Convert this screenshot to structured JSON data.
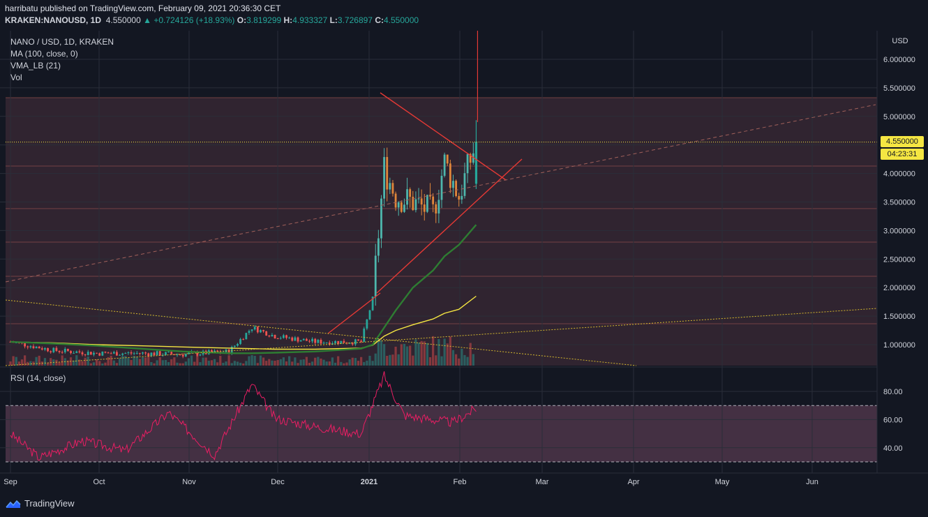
{
  "header": {
    "publisher_line": "harribatu published on TradingView.com, February 09, 2021 20:36:30 CET",
    "symbol": "KRAKEN:NANOUSD, 1D",
    "price": "4.550000",
    "change_arrow": "▲",
    "change": "+0.724126 (+18.93%)",
    "o_label": "O:",
    "o": "3.819299",
    "h_label": "H:",
    "h": "4.933327",
    "l_label": "L:",
    "l": "3.726897",
    "c_label": "C:",
    "c": "4.550000"
  },
  "legend": {
    "title": "NANO / USD, 1D, KRAKEN",
    "ma": "MA (100, close, 0)",
    "vma": "VMA_LB (21)",
    "vol": "Vol",
    "rsi": "RSI (14, close)"
  },
  "price_axis": {
    "currency": "USD",
    "ticks": [
      "6.000000",
      "5.500000",
      "5.000000",
      "4.000000",
      "3.500000",
      "3.000000",
      "2.500000",
      "2.000000",
      "1.500000",
      "1.000000"
    ],
    "last_price_label": "4.550000",
    "countdown_label": "04:23:31"
  },
  "rsi_axis": {
    "ticks": [
      "80.00",
      "60.00",
      "40.00"
    ]
  },
  "time_axis": {
    "labels": [
      "Sep",
      "Oct",
      "Nov",
      "Dec",
      "2021",
      "Feb",
      "Mar",
      "Apr",
      "May",
      "Jun"
    ]
  },
  "footer": {
    "brand": "TradingView",
    "icon": "tradingview-logo-icon"
  },
  "colors": {
    "background": "#131722",
    "up": "#26a69a",
    "down": "#ef5350",
    "ma": "#f5e642",
    "vma": "#2e7d32",
    "trend": "#e53935",
    "rsi": "#e91e63",
    "rsi_band": "#7e57c2",
    "last_price_tag": "#f5e642"
  },
  "chart_data": [
    {
      "type": "line",
      "title": "NANO / USD, 1D, KRAKEN",
      "xlabel": "",
      "ylabel": "USD",
      "ylim": [
        0.6,
        6.4
      ],
      "x": [
        "2020-08-31",
        "2020-09-15",
        "2020-09-30",
        "2020-10-15",
        "2020-10-30",
        "2020-11-15",
        "2020-11-23",
        "2020-12-01",
        "2020-12-15",
        "2020-12-31",
        "2021-01-04",
        "2021-01-08",
        "2021-01-12",
        "2021-01-18",
        "2021-01-25",
        "2021-01-29",
        "2021-02-03",
        "2021-02-09"
      ],
      "series": [
        {
          "name": "close",
          "values": [
            1.05,
            0.9,
            0.85,
            0.85,
            0.83,
            0.88,
            1.3,
            1.15,
            1.05,
            1.05,
            1.8,
            4.1,
            3.6,
            3.5,
            3.3,
            4.2,
            3.6,
            4.55
          ]
        },
        {
          "name": "MA (100, close, 0)",
          "values": [
            1.05,
            1.03,
            1.0,
            0.98,
            0.96,
            0.94,
            0.93,
            0.92,
            0.92,
            0.94,
            0.99,
            1.15,
            1.25,
            1.35,
            1.45,
            1.55,
            1.62,
            1.85
          ]
        },
        {
          "name": "VMA_LB (21)",
          "values": [
            1.05,
            1.02,
            0.98,
            0.93,
            0.88,
            0.85,
            0.85,
            0.86,
            0.88,
            0.93,
            1.0,
            1.3,
            1.6,
            2.0,
            2.3,
            2.55,
            2.75,
            3.1
          ]
        }
      ],
      "last": {
        "open": 3.819299,
        "high": 4.933327,
        "low": 3.726897,
        "close": 4.55
      }
    },
    {
      "type": "line",
      "title": "RSI (14, close)",
      "ylim": [
        26,
        95
      ],
      "bands": [
        30,
        70
      ],
      "x": [
        "2020-08-31",
        "2020-09-10",
        "2020-09-25",
        "2020-10-10",
        "2020-10-25",
        "2020-11-10",
        "2020-11-23",
        "2020-12-01",
        "2020-12-15",
        "2020-12-31",
        "2021-01-08",
        "2021-01-15",
        "2021-01-25",
        "2021-02-01",
        "2021-02-09"
      ],
      "series": [
        {
          "name": "RSI",
          "values": [
            50,
            33,
            45,
            38,
            65,
            35,
            85,
            61,
            55,
            50,
            91,
            63,
            60,
            58,
            68
          ]
        }
      ]
    }
  ]
}
